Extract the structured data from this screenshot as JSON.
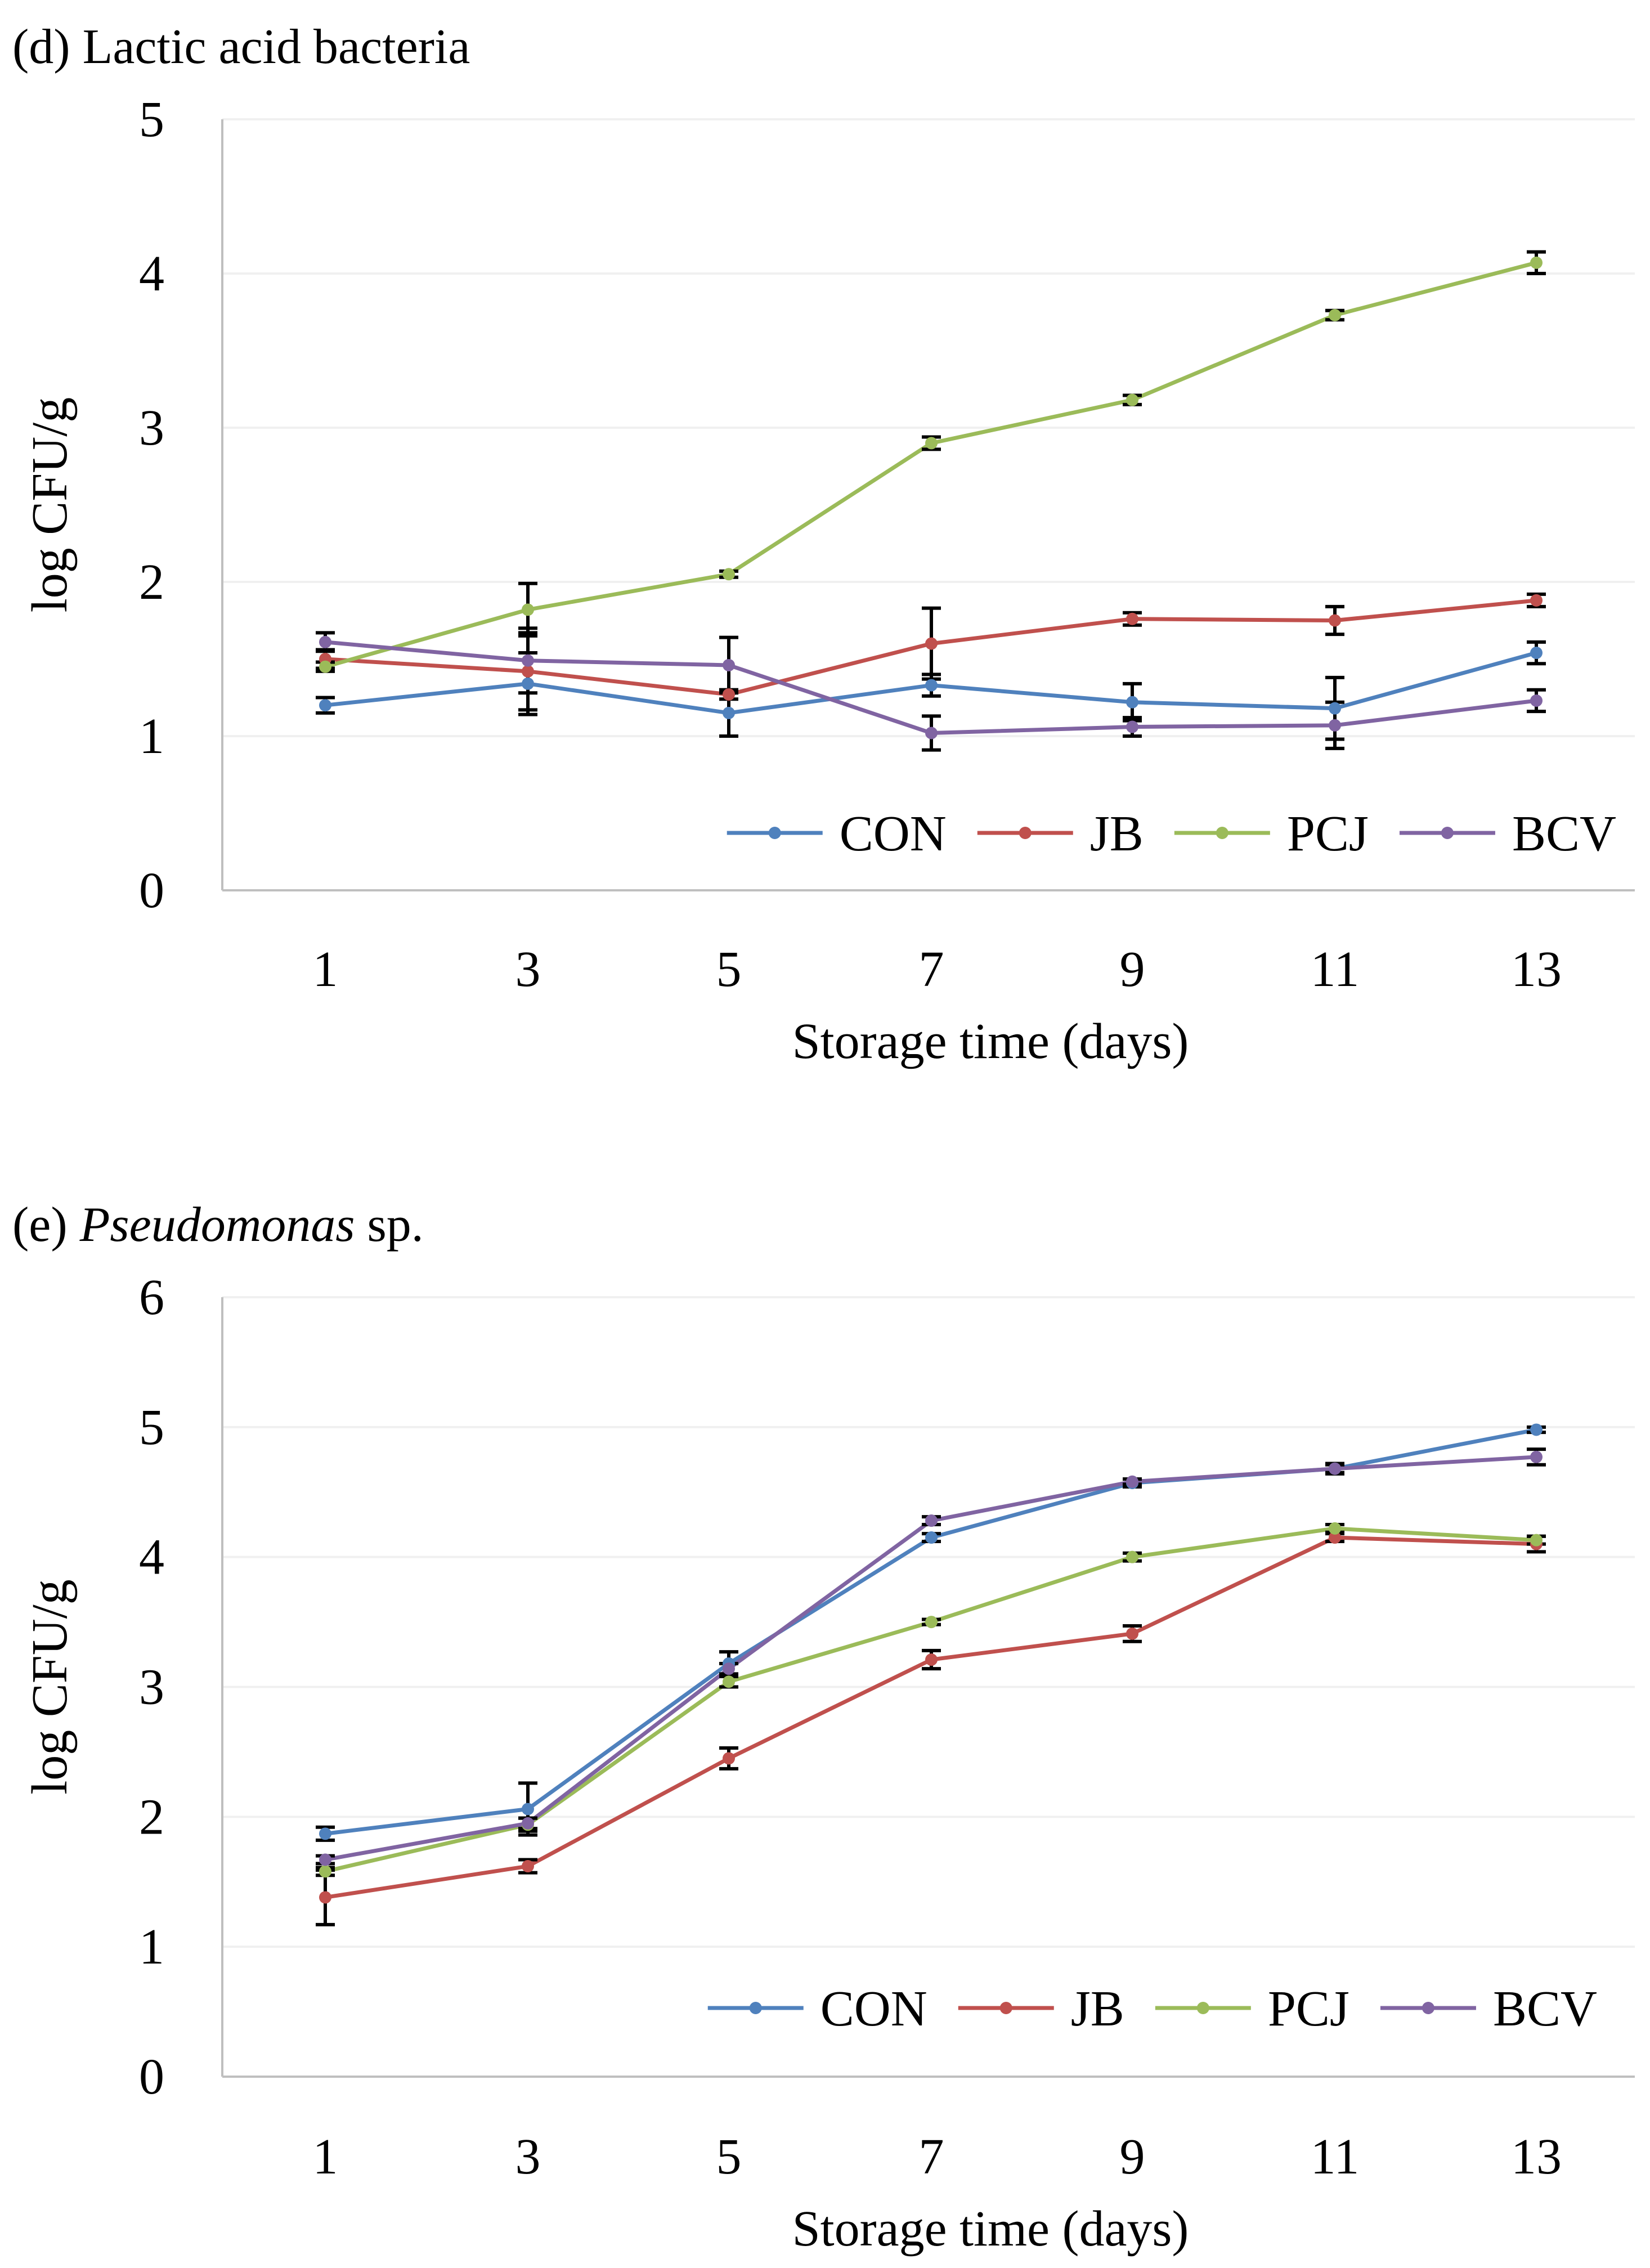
{
  "chart_data": [
    {
      "type": "line",
      "title_prefix": "(d)",
      "title_main": "Lactic acid bacteria",
      "title_suffix": "",
      "xlabel": "Storage time (days)",
      "ylabel": "log CFU/g",
      "ylim": [
        0,
        5
      ],
      "yticks": [
        "0",
        "1",
        "2",
        "3",
        "4",
        "5"
      ],
      "categories": [
        "1",
        "3",
        "5",
        "7",
        "9",
        "11",
        "13"
      ],
      "grid": true,
      "legend": "bottom-right",
      "series": [
        {
          "name": "CON",
          "color": "#4F81BD",
          "values": [
            1.2,
            1.34,
            1.15,
            1.33,
            1.22,
            1.18,
            1.54
          ],
          "errors": [
            0.05,
            0.2,
            0.15,
            0.07,
            0.12,
            0.2,
            0.07
          ]
        },
        {
          "name": "JB",
          "color": "#C0504D",
          "values": [
            1.5,
            1.42,
            1.27,
            1.6,
            1.76,
            1.75,
            1.88
          ],
          "errors": [
            0.06,
            0.25,
            0.03,
            0.23,
            0.04,
            0.09,
            0.04
          ]
        },
        {
          "name": "PCJ",
          "color": "#9BBB59",
          "values": [
            1.45,
            1.82,
            2.05,
            2.9,
            3.18,
            3.73,
            4.07
          ],
          "errors": [
            0.03,
            0.17,
            0.02,
            0.04,
            0.03,
            0.03,
            0.07
          ]
        },
        {
          "name": "BCV",
          "color": "#8064A2",
          "values": [
            1.61,
            1.49,
            1.46,
            1.02,
            1.06,
            1.07,
            1.23
          ],
          "errors": [
            0.06,
            0.21,
            0.18,
            0.11,
            0.06,
            0.15,
            0.07
          ]
        }
      ]
    },
    {
      "type": "line",
      "title_prefix": "(e)",
      "title_main": "Pseudomonas",
      "title_suffix": "sp.",
      "xlabel": "Storage time (days)",
      "ylabel": "log CFU/g",
      "ylim": [
        0,
        6
      ],
      "yticks": [
        "0",
        "1",
        "2",
        "3",
        "4",
        "5",
        "6"
      ],
      "categories": [
        "1",
        "3",
        "5",
        "7",
        "9",
        "11",
        "13"
      ],
      "grid": true,
      "legend": "bottom-right",
      "series": [
        {
          "name": "CON",
          "color": "#4F81BD",
          "values": [
            1.87,
            2.06,
            3.18,
            4.15,
            4.57,
            4.68,
            4.98
          ],
          "errors": [
            0.05,
            0.2,
            0.09,
            0.03,
            0.03,
            0.04,
            0.02
          ]
        },
        {
          "name": "JB",
          "color": "#C0504D",
          "values": [
            1.38,
            1.62,
            2.45,
            3.21,
            3.41,
            4.15,
            4.1
          ],
          "errors": [
            0.21,
            0.05,
            0.08,
            0.07,
            0.06,
            0.03,
            0.06
          ]
        },
        {
          "name": "PCJ",
          "color": "#9BBB59",
          "values": [
            1.58,
            1.94,
            3.04,
            3.5,
            4.0,
            4.22,
            4.13
          ],
          "errors": [
            0.03,
            0.05,
            0.04,
            0.02,
            0.03,
            0.03,
            0.03
          ]
        },
        {
          "name": "BCV",
          "color": "#8064A2",
          "values": [
            1.67,
            1.95,
            3.14,
            4.28,
            4.58,
            4.68,
            4.77
          ],
          "errors": [
            0.03,
            0.04,
            0.04,
            0.03,
            0.02,
            0.03,
            0.06
          ]
        }
      ]
    }
  ]
}
